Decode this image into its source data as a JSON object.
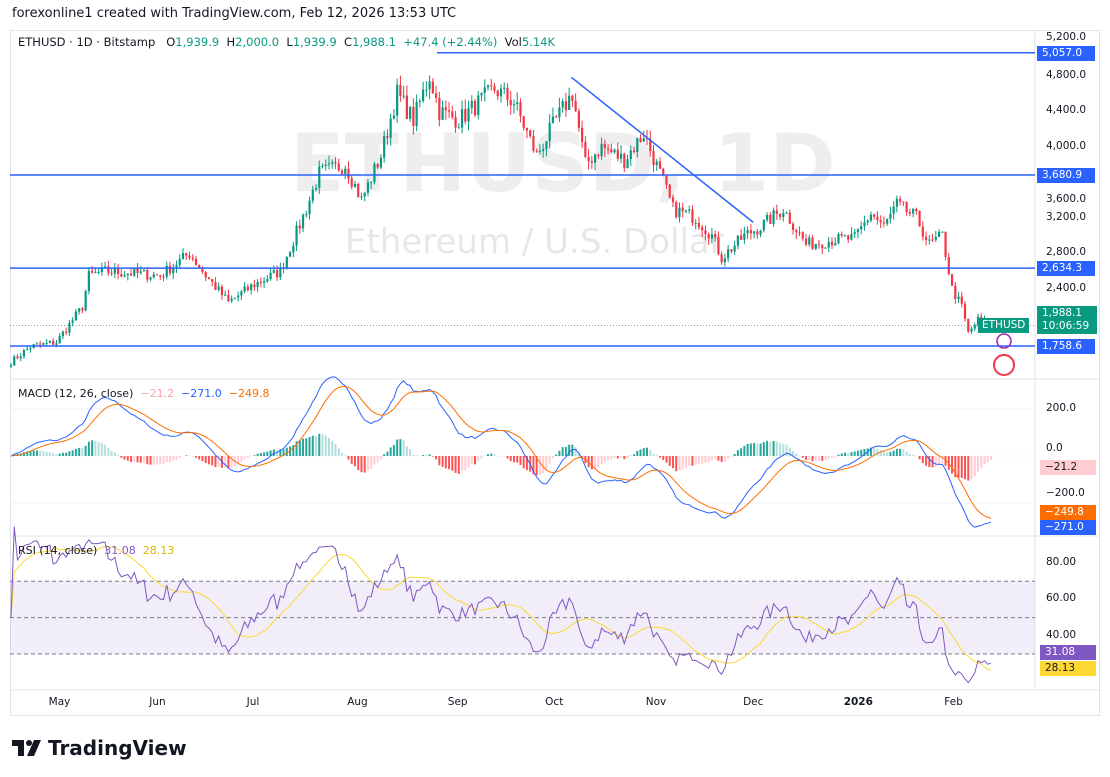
{
  "header": {
    "title": "forexonline1 created with TradingView.com, Feb 12, 2026 13:53 UTC"
  },
  "legend": {
    "symbol": "ETHUSD · 1D · Bitstamp",
    "o_label": "O",
    "o": "1,939.9",
    "h_label": "H",
    "h": "2,000.0",
    "l_label": "L",
    "l": "1,939.9",
    "c_label": "C",
    "c": "1,988.1",
    "change": "+47.4 (+2.44%)",
    "vol_label": "Vol",
    "vol": "5.14K"
  },
  "watermark": {
    "line1": "ETHUSD, 1D",
    "line2": "Ethereum / U.S. Dollar"
  },
  "price_axis": [
    "5,200.0",
    "4,800.0",
    "4,400.0",
    "4,000.0",
    "3,600.0",
    "3,200.0",
    "2,800.0",
    "2,400.0"
  ],
  "levels": [
    {
      "value": 5057.0,
      "label": "5,057.0"
    },
    {
      "value": 3680.9,
      "label": "3,680.9"
    },
    {
      "value": 2634.3,
      "label": "2,634.3"
    },
    {
      "value": 1758.6,
      "label": "1,758.6"
    }
  ],
  "last_price": {
    "symbol": "ETHUSD",
    "price": "1,988.1",
    "countdown": "10:06:59"
  },
  "macd": {
    "label": "MACD (12, 26, close)",
    "hist": "−21.2",
    "macd": "−271.0",
    "signal": "−249.8",
    "axis": [
      "200.0",
      "0.0",
      "−200.0"
    ]
  },
  "rsi": {
    "label": "RSI (14, close)",
    "rsi": "31.08",
    "ma": "28.13",
    "axis": [
      "80.00",
      "60.00",
      "40.00"
    ]
  },
  "x_axis": [
    "May",
    "Jun",
    "Jul",
    "Aug",
    "Sep",
    "Oct",
    "Nov",
    "Dec",
    "2026",
    "Feb"
  ],
  "brand": "TradingView",
  "colors": {
    "up": "#089981",
    "down": "#f23645",
    "level": "#2962ff",
    "macd": "#2962ff",
    "signal": "#ff6d00",
    "rsi": "#7e57c2",
    "rsi_ma": "#fdd835"
  },
  "chart_data": {
    "type": "candlestick",
    "symbol": "ETHUSD",
    "interval": "1D",
    "ylim": [
      1500,
      5300
    ],
    "approx_closes": [
      [
        "2025-04-16",
        1580
      ],
      [
        "2025-04-22",
        1750
      ],
      [
        "2025-04-30",
        1800
      ],
      [
        "2025-05-08",
        2200
      ],
      [
        "2025-05-10",
        2550
      ],
      [
        "2025-05-15",
        2600
      ],
      [
        "2025-06-01",
        2550
      ],
      [
        "2025-06-10",
        2800
      ],
      [
        "2025-06-15",
        2550
      ],
      [
        "2025-06-22",
        2250
      ],
      [
        "2025-06-30",
        2450
      ],
      [
        "2025-07-08",
        2600
      ],
      [
        "2025-07-12",
        2950
      ],
      [
        "2025-07-16",
        3300
      ],
      [
        "2025-07-20",
        3700
      ],
      [
        "2025-07-28",
        3800
      ],
      [
        "2025-08-02",
        3400
      ],
      [
        "2025-08-08",
        3900
      ],
      [
        "2025-08-13",
        4600
      ],
      [
        "2025-08-18",
        4300
      ],
      [
        "2025-08-23",
        4800
      ],
      [
        "2025-08-26",
        4400
      ],
      [
        "2025-09-01",
        4300
      ],
      [
        "2025-09-12",
        4650
      ],
      [
        "2025-09-18",
        4500
      ],
      [
        "2025-09-25",
        3900
      ],
      [
        "2025-10-01",
        4300
      ],
      [
        "2025-10-06",
        4600
      ],
      [
        "2025-10-10",
        3800
      ],
      [
        "2025-10-15",
        4000
      ],
      [
        "2025-10-22",
        3850
      ],
      [
        "2025-10-28",
        4150
      ],
      [
        "2025-11-03",
        3600
      ],
      [
        "2025-11-06",
        3300
      ],
      [
        "2025-11-13",
        3200
      ],
      [
        "2025-11-18",
        3000
      ],
      [
        "2025-11-21",
        2750
      ],
      [
        "2025-11-28",
        3000
      ],
      [
        "2025-12-03",
        3100
      ],
      [
        "2025-12-10",
        3300
      ],
      [
        "2025-12-17",
        2900
      ],
      [
        "2025-12-25",
        2950
      ],
      [
        "2026-01-01",
        2970
      ],
      [
        "2026-01-06",
        3250
      ],
      [
        "2026-01-10",
        3100
      ],
      [
        "2026-01-14",
        3350
      ],
      [
        "2026-01-20",
        3200
      ],
      [
        "2026-01-24",
        2900
      ],
      [
        "2026-01-28",
        3000
      ],
      [
        "2026-01-31",
        2400
      ],
      [
        "2026-02-03",
        2200
      ],
      [
        "2026-02-05",
        1900
      ],
      [
        "2026-02-08",
        2050
      ],
      [
        "2026-02-12",
        1988.1
      ]
    ],
    "trendline": [
      [
        "2025-10-06",
        4780
      ],
      [
        "2025-12-01",
        3150
      ]
    ]
  }
}
